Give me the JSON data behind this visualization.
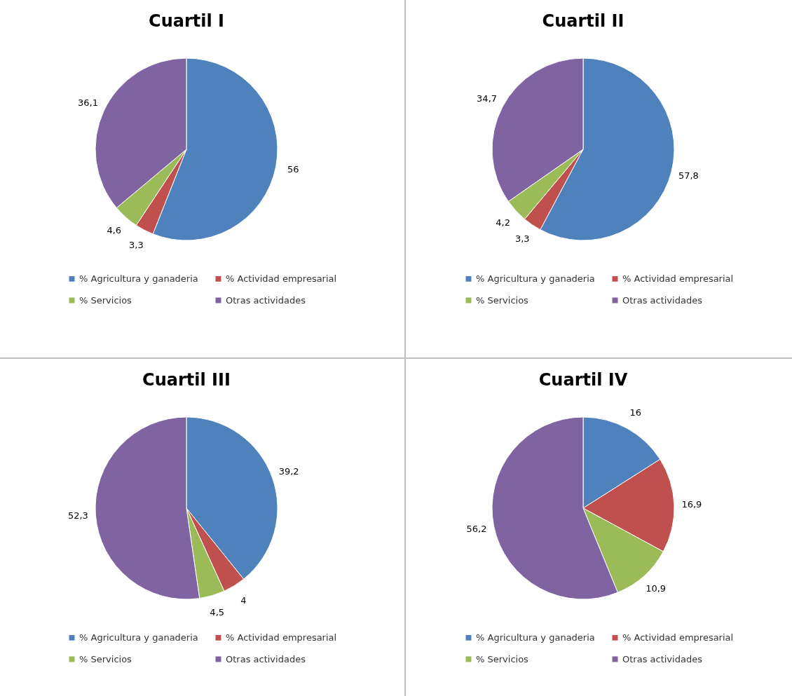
{
  "chart_data": [
    {
      "type": "pie",
      "title": "Cuartil I",
      "categories": [
        "% Agricultura y ganaderia",
        "% Actividad empresarial",
        "% Servicios",
        "Otras actividades"
      ],
      "values": [
        56,
        3.3,
        4.6,
        36.1
      ],
      "value_labels": [
        "56",
        "3,3",
        "4,6",
        "36,1"
      ],
      "colors": [
        "#4f81bd",
        "#c0504d",
        "#9bbb59",
        "#8064a2"
      ],
      "legend": "bottom"
    },
    {
      "type": "pie",
      "title": "Cuartil II",
      "categories": [
        "% Agricultura y ganaderia",
        "% Actividad empresarial",
        "% Servicios",
        "Otras actividades"
      ],
      "values": [
        57.8,
        3.3,
        4.2,
        34.7
      ],
      "value_labels": [
        "57,8",
        "3,3",
        "4,2",
        "34,7"
      ],
      "colors": [
        "#4f81bd",
        "#c0504d",
        "#9bbb59",
        "#8064a2"
      ],
      "legend": "bottom"
    },
    {
      "type": "pie",
      "title": "Cuartil III",
      "categories": [
        "% Agricultura y ganaderia",
        "% Actividad empresarial",
        "% Servicios",
        "Otras actividades"
      ],
      "values": [
        39.2,
        4,
        4.5,
        52.3
      ],
      "value_labels": [
        "39,2",
        "4",
        "4,5",
        "52,3"
      ],
      "colors": [
        "#4f81bd",
        "#c0504d",
        "#9bbb59",
        "#8064a2"
      ],
      "legend": "bottom"
    },
    {
      "type": "pie",
      "title": "Cuartil IV",
      "categories": [
        "% Agricultura y ganaderia",
        "% Actividad empresarial",
        "% Servicios",
        "Otras actividades"
      ],
      "values": [
        16,
        16.9,
        10.9,
        56.2
      ],
      "value_labels": [
        "16",
        "16,9",
        "10,9",
        "56,2"
      ],
      "colors": [
        "#4f81bd",
        "#c0504d",
        "#9bbb59",
        "#8064a2"
      ],
      "legend": "bottom"
    }
  ]
}
